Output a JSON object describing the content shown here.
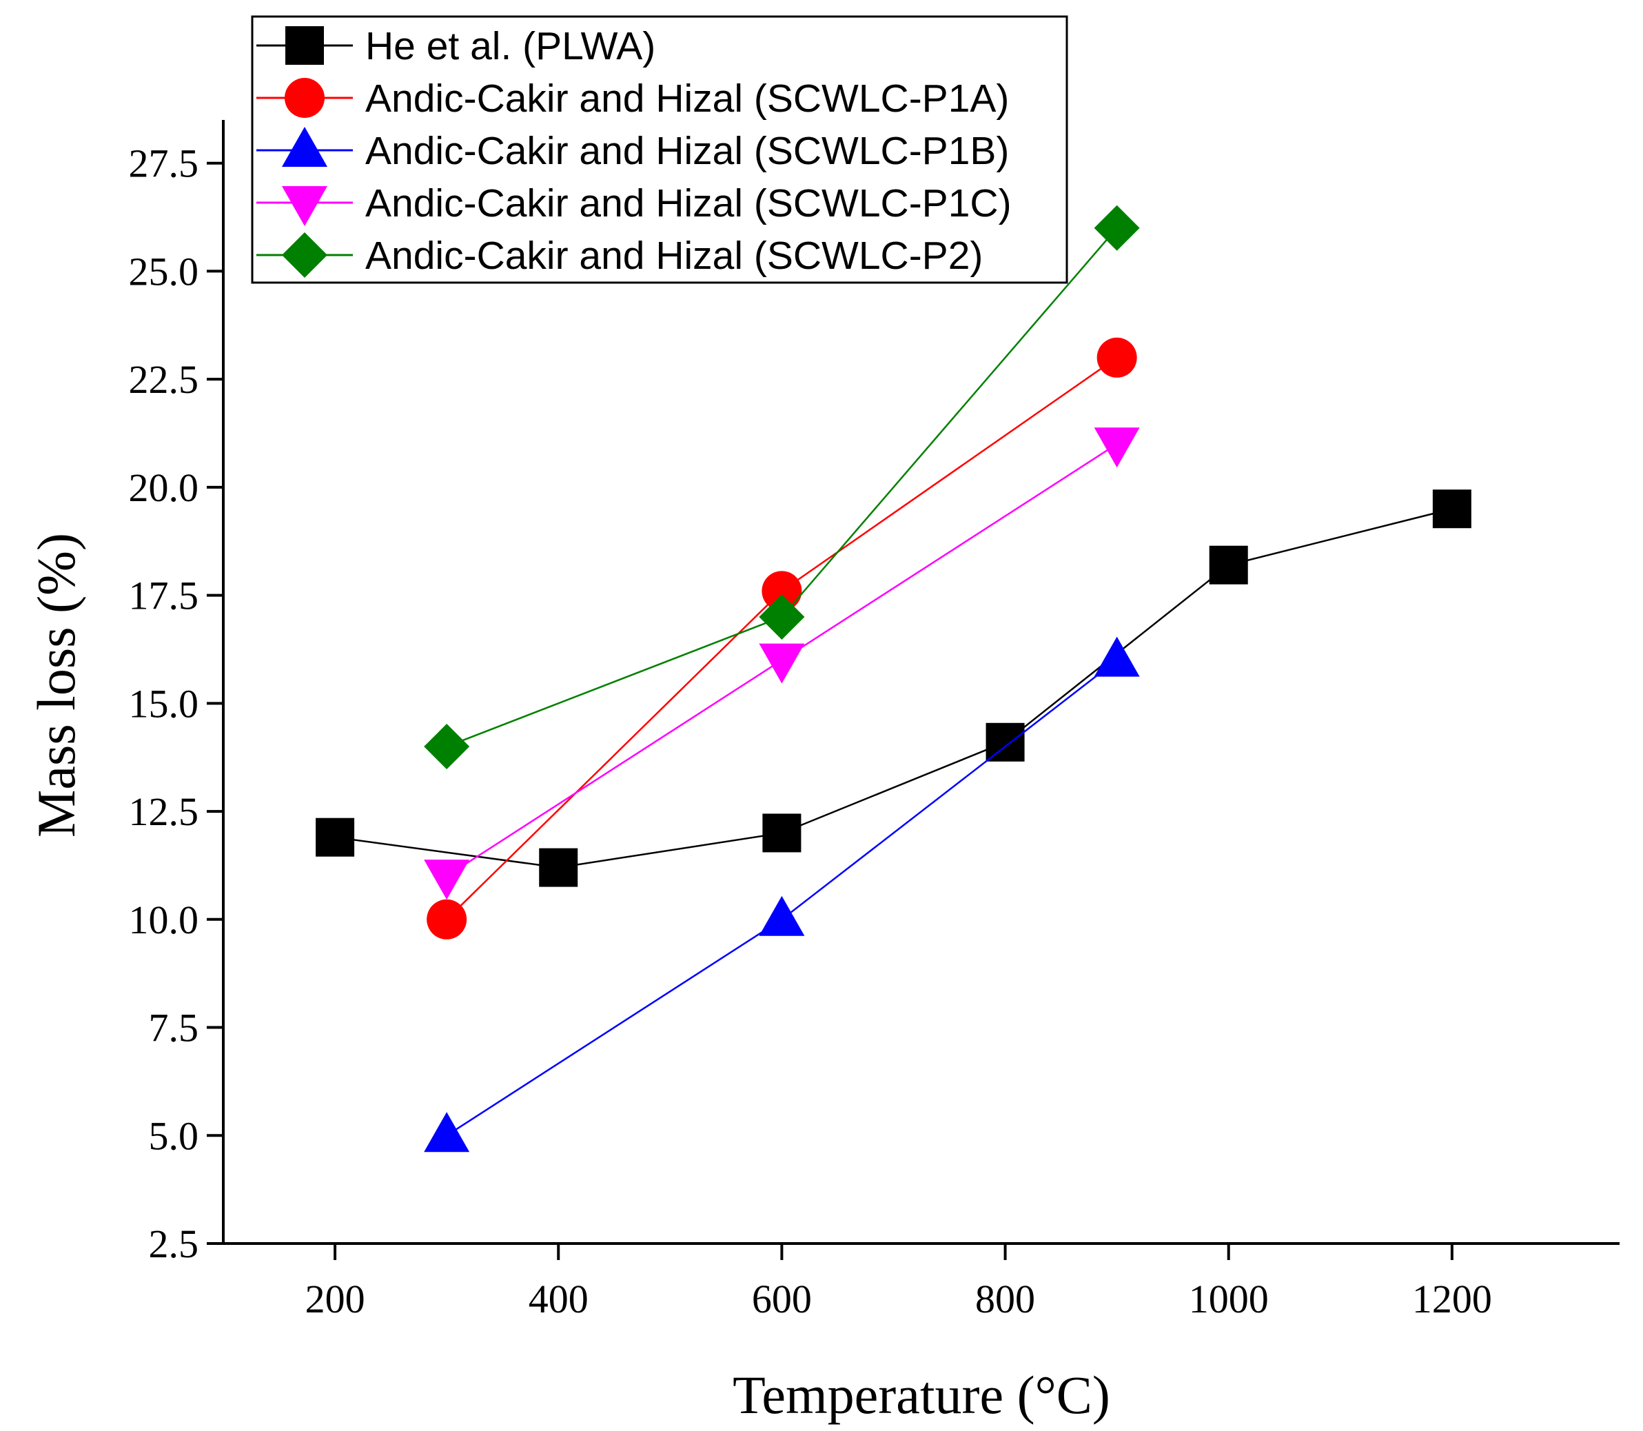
{
  "chart_data": {
    "type": "line",
    "title": "",
    "xlabel": "Temperature (°C)",
    "ylabel": "Mass loss (%)",
    "xlim": [
      100,
      1350
    ],
    "ylim": [
      2.5,
      28.5
    ],
    "xticks": [
      200,
      400,
      600,
      800,
      1000,
      1200
    ],
    "yticks": [
      2.5,
      5.0,
      7.5,
      10.0,
      12.5,
      15.0,
      17.5,
      20.0,
      22.5,
      25.0,
      27.5
    ],
    "xtick_labels": [
      "200",
      "400",
      "600",
      "800",
      "1000",
      "1200"
    ],
    "ytick_labels": [
      "2.5",
      "5.0",
      "7.5",
      "10.0",
      "12.5",
      "15.0",
      "17.5",
      "20.0",
      "22.5",
      "25.0",
      "27.5"
    ],
    "grid": false,
    "legend_position": "top-left",
    "series": [
      {
        "name": "He et al. (PLWA)",
        "color": "#000000",
        "marker": "square",
        "x": [
          200,
          400,
          600,
          800,
          1000,
          1200
        ],
        "y": [
          11.9,
          11.2,
          12.0,
          14.1,
          18.2,
          19.5
        ]
      },
      {
        "name": "Andic-Cakir and Hizal (SCWLC-P1A)",
        "color": "#ff0000",
        "marker": "circle",
        "x": [
          300,
          600,
          900
        ],
        "y": [
          10.0,
          17.6,
          23.0
        ]
      },
      {
        "name": "Andic-Cakir and Hizal (SCWLC-P1B)",
        "color": "#0000ff",
        "marker": "triangle-up",
        "x": [
          300,
          600,
          900
        ],
        "y": [
          5.0,
          10.0,
          16.0
        ]
      },
      {
        "name": "Andic-Cakir and Hizal (SCWLC-P1C)",
        "color": "#ff00ff",
        "marker": "triangle-down",
        "x": [
          300,
          600,
          900
        ],
        "y": [
          11.0,
          16.0,
          21.0
        ]
      },
      {
        "name": "Andic-Cakir and Hizal (SCWLC-P2)",
        "color": "#008000",
        "marker": "diamond",
        "x": [
          300,
          600,
          900
        ],
        "y": [
          14.0,
          17.0,
          26.0
        ]
      }
    ]
  }
}
